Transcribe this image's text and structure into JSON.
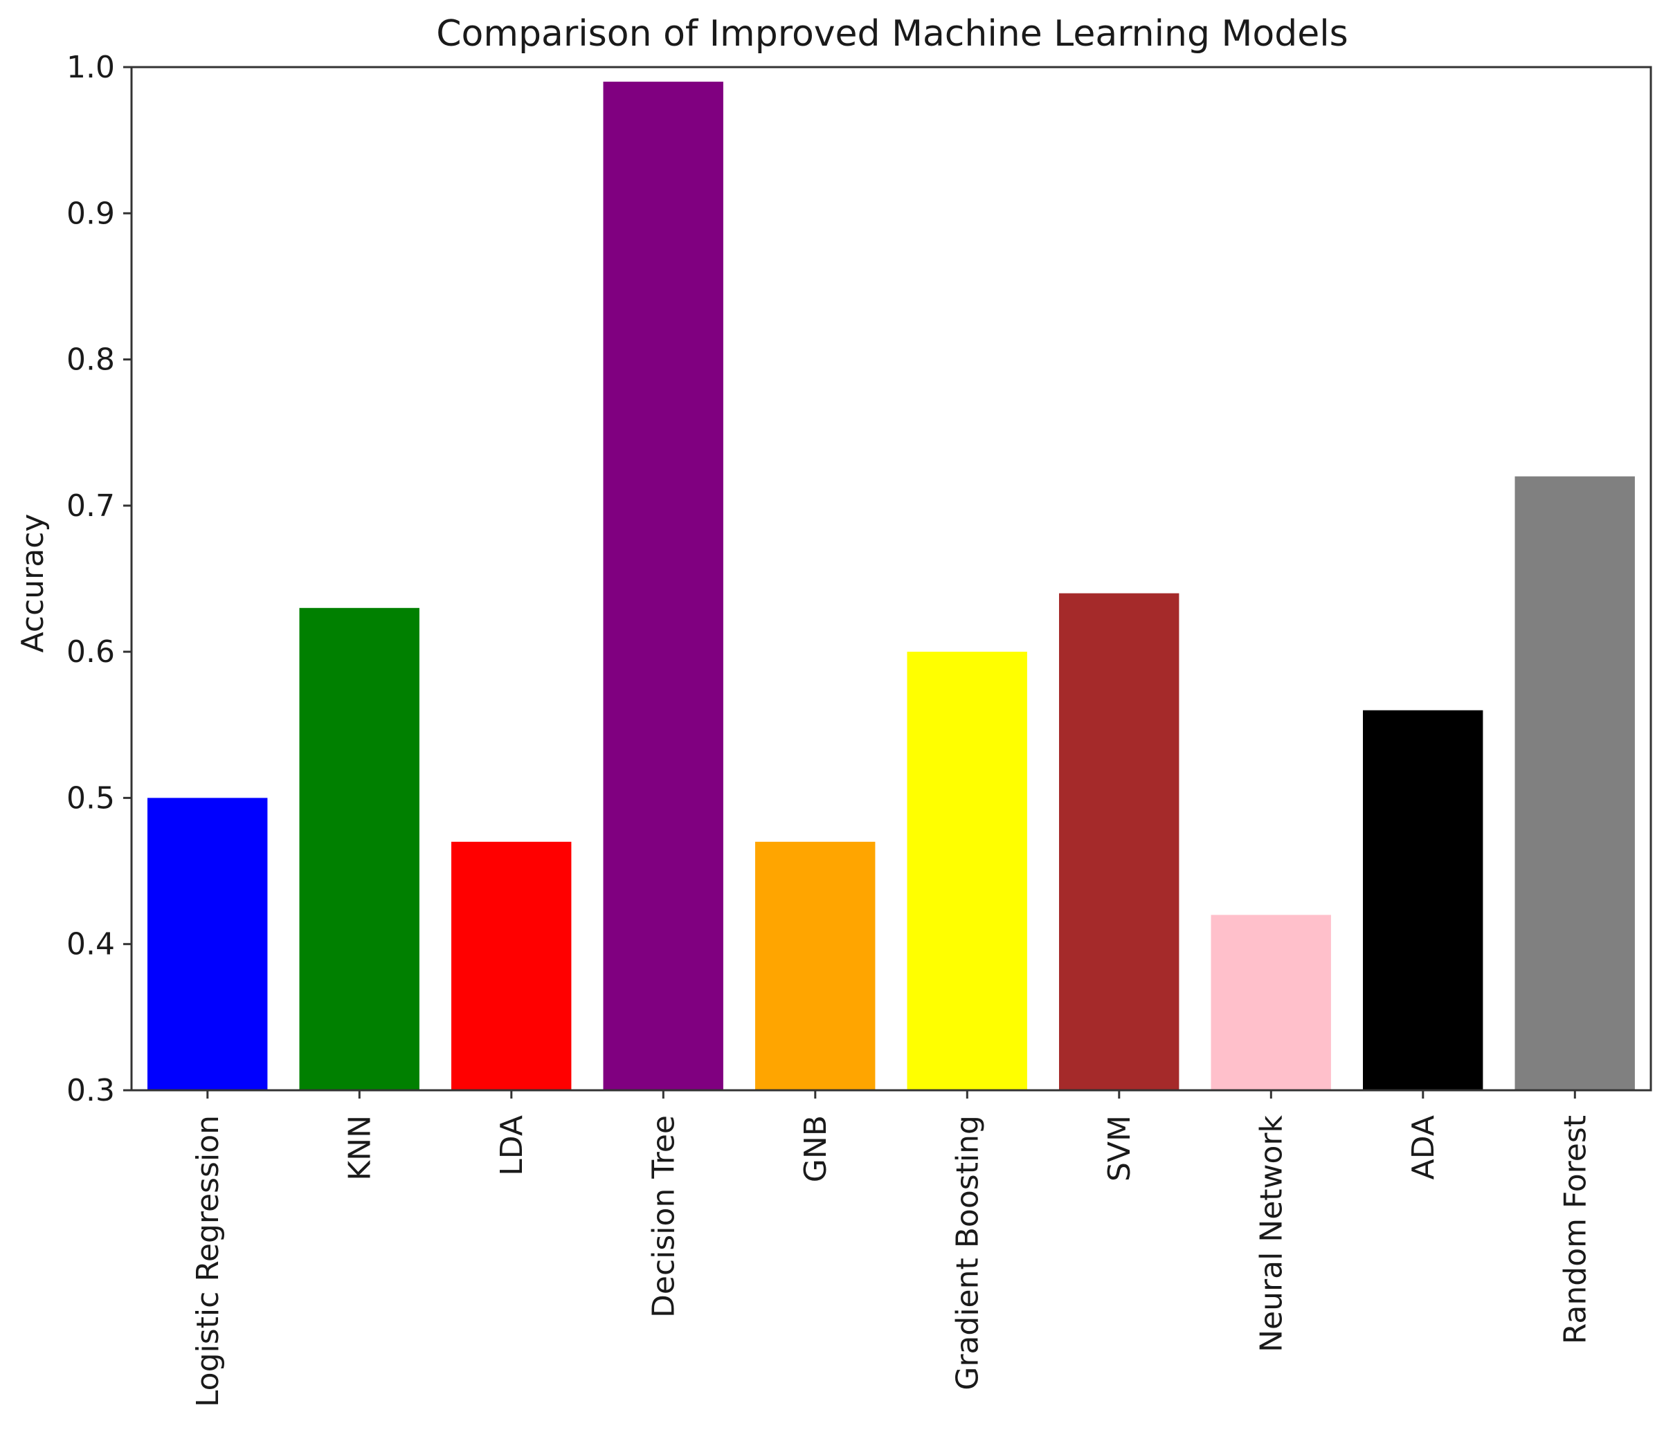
{
  "chart_data": {
    "type": "bar",
    "title": "Comparison of Improved Machine Learning Models",
    "xlabel": "",
    "ylabel": "Accuracy",
    "ylim": [
      0.3,
      1.0
    ],
    "yticks": [
      "0.3",
      "0.4",
      "0.5",
      "0.6",
      "0.7",
      "0.8",
      "0.9",
      "1.0"
    ],
    "grid": false,
    "categories": [
      "Logistic Regression",
      "KNN",
      "LDA",
      "Decision Tree",
      "GNB",
      "Gradient Boosting",
      "SVM",
      "Neural Network",
      "ADA",
      "Random Forest"
    ],
    "values": [
      0.5,
      0.63,
      0.47,
      0.99,
      0.47,
      0.6,
      0.64,
      0.42,
      0.56,
      0.72
    ],
    "colors": [
      "#0000ff",
      "#008000",
      "#ff0000",
      "#800080",
      "#ffa500",
      "#ffff00",
      "#a52a2a",
      "#ffc0cb",
      "#000000",
      "#808080"
    ]
  }
}
